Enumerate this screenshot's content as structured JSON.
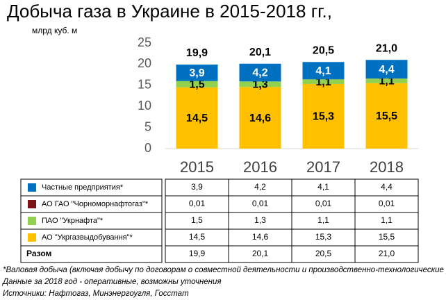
{
  "chart_data": {
    "type": "bar",
    "stacked": true,
    "title": "Добыча газа в Украине в 2015-2018 гг.,",
    "subtitle": "млрд куб. м",
    "categories": [
      "2015",
      "2016",
      "2017",
      "2018"
    ],
    "series": [
      {
        "name": "АО \"Укргазвыдобування\"*",
        "color": "#FFC000",
        "values": [
          14.5,
          14.6,
          15.3,
          15.5
        ],
        "value_labels": [
          "14,5",
          "14,6",
          "15,3",
          "15,5"
        ],
        "label_color": "#000000"
      },
      {
        "name": "ПАО \"Укрнафта\"*",
        "color": "#92D050",
        "values": [
          1.5,
          1.3,
          1.1,
          1.1
        ],
        "value_labels": [
          "1,5",
          "1,3",
          "1,1",
          "1,1"
        ],
        "label_color": "#000000"
      },
      {
        "name": "АО ГАО \"Чорноморнафтогаз\"*",
        "color": "#7B1416",
        "values": [
          0.01,
          0.01,
          0.01,
          0.01
        ],
        "value_labels": [
          "0,01",
          "0,01",
          "0,01",
          "0,01"
        ],
        "label_color": "#FFFFFF"
      },
      {
        "name": "Частные предприятия*",
        "color": "#0070C0",
        "values": [
          3.9,
          4.2,
          4.1,
          4.4
        ],
        "value_labels": [
          "3,9",
          "4,2",
          "4,1",
          "4,4"
        ],
        "label_color": "#FFFFFF"
      }
    ],
    "chart_labels": [
      true,
      true,
      false,
      true
    ],
    "totals_name": "Разом",
    "totals": [
      19.9,
      20.1,
      20.5,
      21.0
    ],
    "total_labels": [
      "19,9",
      "20,1",
      "20,5",
      "21,0"
    ],
    "ylim": [
      0,
      25
    ],
    "yticks": [
      0,
      5,
      10,
      15,
      20,
      25
    ],
    "notes": [
      "*Валовая добыча (включая добычу по договорам о совместной деятельности и производственно-технологические  расходы)",
      "Данные за 2018 год - оперативные, возможны уточнения",
      "Источники: Нафтогаз, Минэнергоугля, Госстат"
    ]
  }
}
